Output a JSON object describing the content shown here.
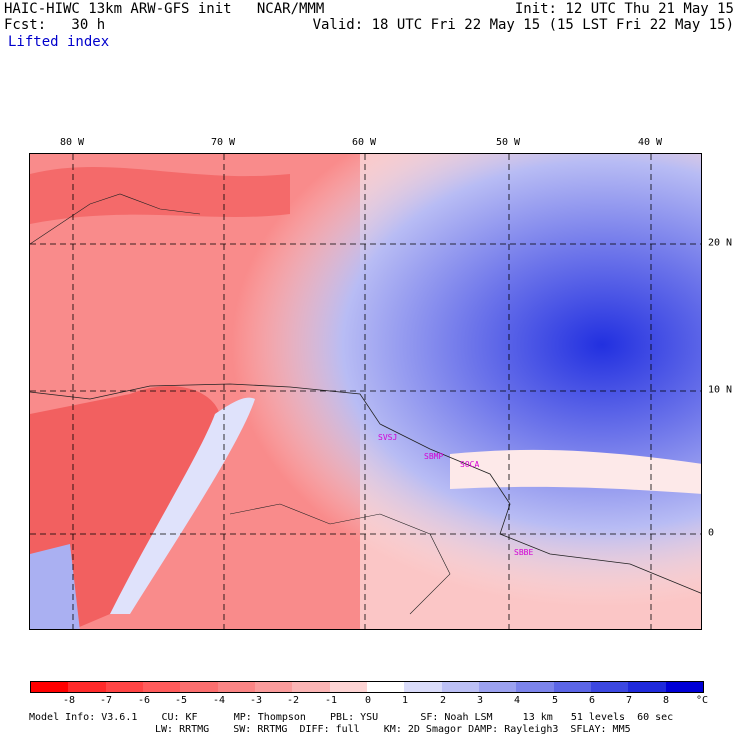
{
  "header": {
    "left_line1": "HAIC-HIWC 13km ARW-GFS init   NCAR/MMM",
    "left_line2": "Fcst:   30 h",
    "field": "Lifted index",
    "right_line1": "Init: 12 UTC Thu 21 May 15",
    "right_line2": "Valid: 18 UTC Fri 22 May 15 (15 LST Fri 22 May 15)"
  },
  "lon_labels": [
    "80 W",
    "70 W",
    "60 W",
    "50 W",
    "40 W"
  ],
  "lat_labels": [
    "20 N",
    "10 N",
    "0"
  ],
  "stations": [
    "SVSJ",
    "SBMP",
    "SOCA",
    "SBBE"
  ],
  "colorbar": {
    "ticks": [
      "-8",
      "-7",
      "-6",
      "-5",
      "-4",
      "-3",
      "-2",
      "-1",
      "0",
      "1",
      "2",
      "3",
      "4",
      "5",
      "6",
      "7",
      "8"
    ],
    "unit": "°C",
    "colors": [
      "#ff0000",
      "#ff2a2a",
      "#ff4545",
      "#ff5c5c",
      "#fb6f6f",
      "#fa8585",
      "#fa9c9c",
      "#fbb5b5",
      "#fdd4d4",
      "#ffffff",
      "#dadcfa",
      "#bcc0f5",
      "#9ca2f0",
      "#7c84eb",
      "#5c66e6",
      "#3c48e1",
      "#1f2adb",
      "#0000d6"
    ]
  },
  "footer": {
    "line1": "Model Info: V3.6.1    CU: KF      MP: Thompson    PBL: YSU       SF: Noah LSM     13 km   51 levels  60 sec",
    "line2": "LW: RRTMG    SW: RRTMG  DIFF: full    KM: 2D Smagor DAMP: Rayleigh3  SFLAY: MM5"
  }
}
